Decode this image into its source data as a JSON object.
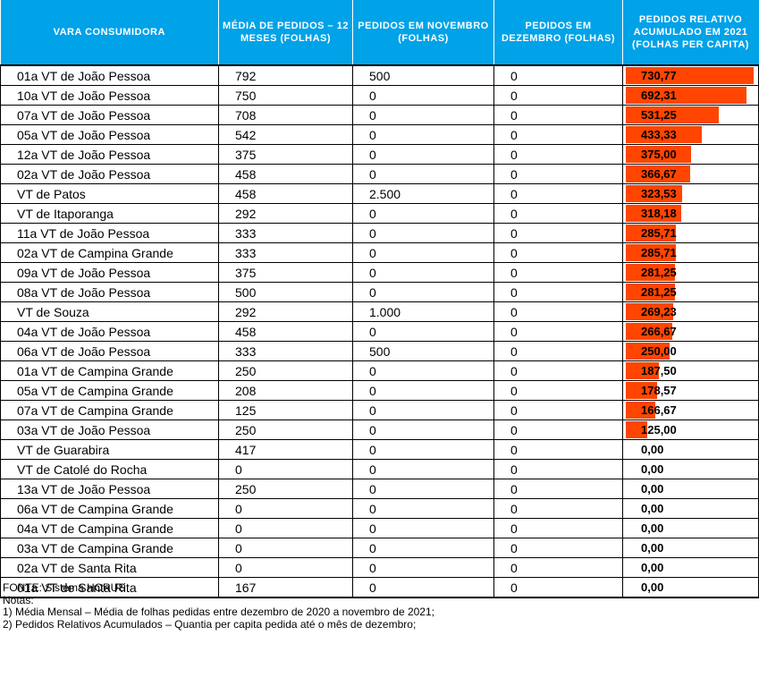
{
  "headers": [
    "VARA CONSUMIDORA",
    "MÉDIA DE PEDIDOS – 12 MESES (FOLHAS)",
    "PEDIDOS EM NOVEMBRO (FOLHAS)",
    "PEDIDOS EM DEZEMBRO (FOLHAS)",
    "PEDIDOS RELATIVO ACUMULADO EM 2021 (FOLHAS PER CAPITA)"
  ],
  "bar_color": "#ff4500",
  "header_color": "#00a2e8",
  "bar_max": 730.77,
  "rows": [
    {
      "vara": "01a VT de João Pessoa",
      "media": "792",
      "novembro": "500",
      "dezembro": "0",
      "per_capita": "730,77",
      "value": 730.77
    },
    {
      "vara": "10a VT de João Pessoa",
      "media": "750",
      "novembro": "0",
      "dezembro": "0",
      "per_capita": "692,31",
      "value": 692.31
    },
    {
      "vara": "07a VT de João Pessoa",
      "media": "708",
      "novembro": "0",
      "dezembro": "0",
      "per_capita": "531,25",
      "value": 531.25
    },
    {
      "vara": "05a VT de João Pessoa",
      "media": "542",
      "novembro": "0",
      "dezembro": "0",
      "per_capita": "433,33",
      "value": 433.33
    },
    {
      "vara": "12a VT de João Pessoa",
      "media": "375",
      "novembro": "0",
      "dezembro": "0",
      "per_capita": "375,00",
      "value": 375.0
    },
    {
      "vara": "02a VT de João Pessoa",
      "media": "458",
      "novembro": "0",
      "dezembro": "0",
      "per_capita": "366,67",
      "value": 366.67
    },
    {
      "vara": "VT de Patos",
      "media": "458",
      "novembro": "2.500",
      "dezembro": "0",
      "per_capita": "323,53",
      "value": 323.53
    },
    {
      "vara": "VT de Itaporanga",
      "media": "292",
      "novembro": "0",
      "dezembro": "0",
      "per_capita": "318,18",
      "value": 318.18
    },
    {
      "vara": "11a VT de João Pessoa",
      "media": "333",
      "novembro": "0",
      "dezembro": "0",
      "per_capita": "285,71",
      "value": 285.71
    },
    {
      "vara": "02a VT de Campina Grande",
      "media": "333",
      "novembro": "0",
      "dezembro": "0",
      "per_capita": "285,71",
      "value": 285.71
    },
    {
      "vara": "09a VT de João Pessoa",
      "media": "375",
      "novembro": "0",
      "dezembro": "0",
      "per_capita": "281,25",
      "value": 281.25
    },
    {
      "vara": "08a VT de João Pessoa",
      "media": "500",
      "novembro": "0",
      "dezembro": "0",
      "per_capita": "281,25",
      "value": 281.25
    },
    {
      "vara": "VT de Souza",
      "media": "292",
      "novembro": "1.000",
      "dezembro": "0",
      "per_capita": "269,23",
      "value": 269.23
    },
    {
      "vara": "04a VT de João Pessoa",
      "media": "458",
      "novembro": "0",
      "dezembro": "0",
      "per_capita": "266,67",
      "value": 266.67
    },
    {
      "vara": "06a VT de João Pessoa",
      "media": "333",
      "novembro": "500",
      "dezembro": "0",
      "per_capita": "250,00",
      "value": 250.0
    },
    {
      "vara": "01a VT de Campina Grande",
      "media": "250",
      "novembro": "0",
      "dezembro": "0",
      "per_capita": "187,50",
      "value": 187.5
    },
    {
      "vara": "05a VT de Campina Grande",
      "media": "208",
      "novembro": "0",
      "dezembro": "0",
      "per_capita": "178,57",
      "value": 178.57
    },
    {
      "vara": "07a VT de Campina Grande",
      "media": "125",
      "novembro": "0",
      "dezembro": "0",
      "per_capita": "166,67",
      "value": 166.67
    },
    {
      "vara": "03a VT de João Pessoa",
      "media": "250",
      "novembro": "0",
      "dezembro": "0",
      "per_capita": "125,00",
      "value": 125.0
    },
    {
      "vara": "VT de Guarabira",
      "media": "417",
      "novembro": "0",
      "dezembro": "0",
      "per_capita": "0,00",
      "value": 0
    },
    {
      "vara": "VT de Catolé do Rocha",
      "media": "0",
      "novembro": "0",
      "dezembro": "0",
      "per_capita": "0,00",
      "value": 0
    },
    {
      "vara": "13a VT de João Pessoa",
      "media": "250",
      "novembro": "0",
      "dezembro": "0",
      "per_capita": "0,00",
      "value": 0
    },
    {
      "vara": "06a VT de Campina Grande",
      "media": "0",
      "novembro": "0",
      "dezembro": "0",
      "per_capita": "0,00",
      "value": 0
    },
    {
      "vara": "04a VT de Campina Grande",
      "media": "0",
      "novembro": "0",
      "dezembro": "0",
      "per_capita": "0,00",
      "value": 0
    },
    {
      "vara": "03a VT de Campina Grande",
      "media": "0",
      "novembro": "0",
      "dezembro": "0",
      "per_capita": "0,00",
      "value": 0
    },
    {
      "vara": "02a VT de Santa Rita",
      "media": "0",
      "novembro": "0",
      "dezembro": "0",
      "per_capita": "0,00",
      "value": 0
    },
    {
      "vara": "01a VT de Santa Rita",
      "media": "167",
      "novembro": "0",
      "dezembro": "0",
      "per_capita": "0,00",
      "value": 0
    }
  ],
  "footer": {
    "fonte": "FONTE: Sistema HORUS",
    "notas_label": "Notas:",
    "nota1": "1) Média Mensal – Média de folhas pedidas entre dezembro de 2020 a novembro de 2021;",
    "nota2": "2) Pedidos Relativos Acumulados – Quantia per capita pedida até o mês de dezembro;"
  }
}
